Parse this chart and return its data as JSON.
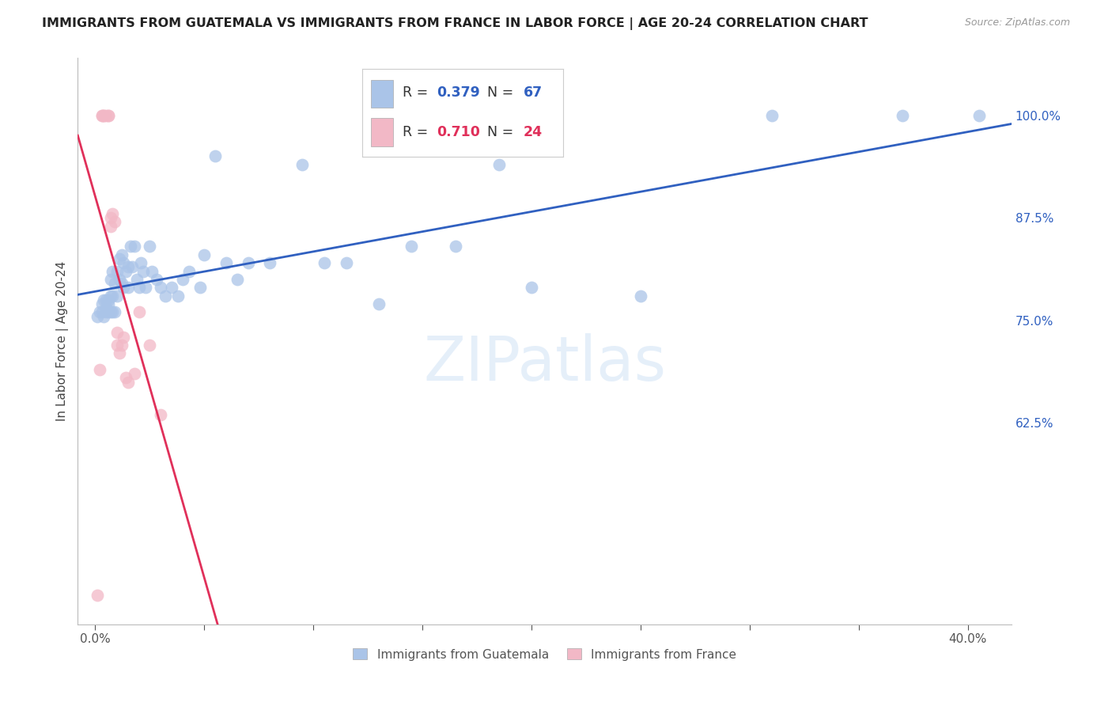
{
  "title": "IMMIGRANTS FROM GUATEMALA VS IMMIGRANTS FROM FRANCE IN LABOR FORCE | AGE 20-24 CORRELATION CHART",
  "source": "Source: ZipAtlas.com",
  "ylabel": "In Labor Force | Age 20-24",
  "x_tick_positions": [
    0.0,
    0.05,
    0.1,
    0.15,
    0.2,
    0.25,
    0.3,
    0.35,
    0.4
  ],
  "x_tick_labels_show": {
    "0.0": "0.0%",
    "0.4": "40.0%"
  },
  "y_ticks": [
    0.625,
    0.75,
    0.875,
    1.0
  ],
  "y_tick_labels": [
    "62.5%",
    "75.0%",
    "87.5%",
    "100.0%"
  ],
  "xlim": [
    -0.008,
    0.42
  ],
  "ylim": [
    0.38,
    1.07
  ],
  "guatemala_color": "#aac4e8",
  "france_color": "#f2b8c6",
  "guatemala_line_color": "#3060c0",
  "france_line_color": "#e0305a",
  "watermark_text": "ZIPatlas",
  "guatemala_x": [
    0.001,
    0.002,
    0.003,
    0.003,
    0.004,
    0.004,
    0.005,
    0.005,
    0.005,
    0.006,
    0.006,
    0.006,
    0.007,
    0.007,
    0.007,
    0.008,
    0.008,
    0.008,
    0.009,
    0.009,
    0.01,
    0.01,
    0.011,
    0.011,
    0.012,
    0.012,
    0.013,
    0.013,
    0.014,
    0.015,
    0.015,
    0.016,
    0.017,
    0.018,
    0.019,
    0.02,
    0.021,
    0.022,
    0.023,
    0.025,
    0.026,
    0.028,
    0.03,
    0.032,
    0.035,
    0.038,
    0.04,
    0.043,
    0.048,
    0.05,
    0.055,
    0.06,
    0.065,
    0.07,
    0.08,
    0.095,
    0.105,
    0.115,
    0.13,
    0.145,
    0.165,
    0.185,
    0.2,
    0.25,
    0.31,
    0.37,
    0.405
  ],
  "guatemala_y": [
    0.755,
    0.76,
    0.76,
    0.77,
    0.755,
    0.775,
    0.76,
    0.765,
    0.775,
    0.76,
    0.77,
    0.775,
    0.76,
    0.78,
    0.8,
    0.76,
    0.78,
    0.81,
    0.76,
    0.795,
    0.78,
    0.81,
    0.8,
    0.825,
    0.795,
    0.83,
    0.79,
    0.82,
    0.81,
    0.79,
    0.815,
    0.84,
    0.815,
    0.84,
    0.8,
    0.79,
    0.82,
    0.81,
    0.79,
    0.84,
    0.81,
    0.8,
    0.79,
    0.78,
    0.79,
    0.78,
    0.8,
    0.81,
    0.79,
    0.83,
    0.95,
    0.82,
    0.8,
    0.82,
    0.82,
    0.94,
    0.82,
    0.82,
    0.77,
    0.84,
    0.84,
    0.94,
    0.79,
    0.78,
    1.0,
    1.0,
    1.0
  ],
  "france_x": [
    0.001,
    0.002,
    0.003,
    0.003,
    0.004,
    0.004,
    0.005,
    0.006,
    0.006,
    0.007,
    0.007,
    0.008,
    0.009,
    0.01,
    0.01,
    0.011,
    0.012,
    0.013,
    0.014,
    0.015,
    0.018,
    0.02,
    0.025,
    0.03
  ],
  "france_y": [
    0.415,
    0.69,
    1.0,
    1.0,
    1.0,
    1.0,
    1.0,
    1.0,
    1.0,
    0.875,
    0.865,
    0.88,
    0.87,
    0.735,
    0.72,
    0.71,
    0.72,
    0.73,
    0.68,
    0.675,
    0.685,
    0.76,
    0.72,
    0.635
  ]
}
